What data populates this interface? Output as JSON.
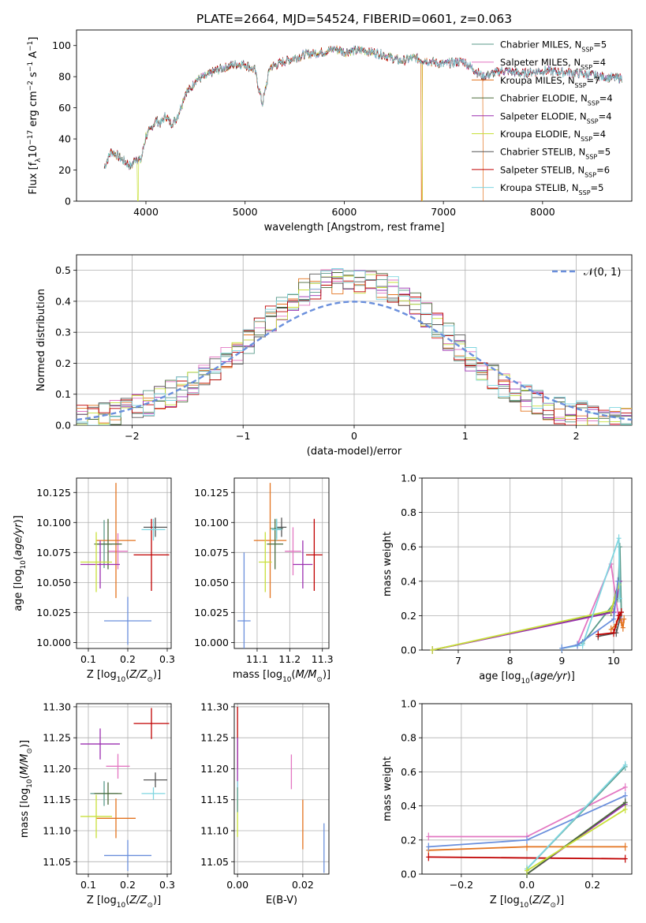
{
  "figure_title": "PLATE=2664, MJD=54524, FIBERID=0601, z=0.063",
  "colors": {
    "Chabrier MILES": "#5a9a8a",
    "Salpeter MILES": "#e377c2",
    "Kroupa MILES": "#e3731e",
    "Chabrier ELODIE": "#4a6a3a",
    "Salpeter ELODIE": "#9b2eb0",
    "Kroupa ELODIE": "#c8e03a",
    "Chabrier STELIB": "#555555",
    "Salpeter STELIB": "#c00000",
    "Kroupa STELIB": "#7fd6e0",
    "normal": "#6a8fdc"
  },
  "chart_data": [
    {
      "id": "spectrum",
      "type": "line",
      "title": "PLATE=2664, MJD=54524, FIBERID=0601, z=0.063",
      "xlabel": "wavelength [Angstrom, rest frame]",
      "ylabel": "Flux [f_λ10^-17 erg cm^-2 s^-1 A^-1]",
      "xlim": [
        3300,
        8900
      ],
      "ylim": [
        0,
        110
      ],
      "xticks": [
        4000,
        5000,
        6000,
        7000,
        8000
      ],
      "yticks": [
        0,
        20,
        40,
        60,
        80,
        100
      ],
      "legend": "top-right",
      "x": [
        3580,
        3650,
        3700,
        3750,
        3800,
        3850,
        3900,
        3950,
        4000,
        4050,
        4100,
        4150,
        4200,
        4250,
        4300,
        4350,
        4400,
        4450,
        4500,
        4600,
        4700,
        4800,
        4900,
        5000,
        5100,
        5175,
        5250,
        5400,
        5600,
        5800,
        5900,
        6000,
        6200,
        6400,
        6563,
        6700,
        6850,
        7000,
        7200,
        7400,
        7600,
        7800,
        8000,
        8200,
        8400,
        8600,
        8800
      ],
      "y": [
        22,
        32,
        30,
        27,
        25,
        22,
        28,
        26,
        42,
        46,
        52,
        50,
        55,
        50,
        52,
        60,
        70,
        72,
        78,
        80,
        84,
        86,
        88,
        88,
        84,
        62,
        86,
        90,
        94,
        96,
        98,
        96,
        97,
        94,
        90,
        92,
        90,
        88,
        90,
        80,
        84,
        82,
        84,
        83,
        82,
        80,
        79
      ],
      "series": [
        {
          "name": "Chabrier MILES, N_SSP=5",
          "drop_at": null
        },
        {
          "name": "Salpeter MILES, N_SSP=4",
          "drop_at": null
        },
        {
          "name": "Kroupa MILES, N_SSP=7",
          "drop_at": [
            6780,
            7400
          ]
        },
        {
          "name": "Chabrier ELODIE, N_SSP=4",
          "drop_at": null
        },
        {
          "name": "Salpeter ELODIE, N_SSP=4",
          "drop_at": null
        },
        {
          "name": "Kroupa ELODIE, N_SSP=4",
          "drop_at": [
            3920,
            6790
          ]
        },
        {
          "name": "Chabrier STELIB, N_SSP=5",
          "drop_at": null
        },
        {
          "name": "Salpeter STELIB, N_SSP=6",
          "drop_at": null
        },
        {
          "name": "Kroupa STELIB, N_SSP=5",
          "drop_at": null
        }
      ]
    },
    {
      "id": "residuals",
      "type": "line",
      "xlabel": "(data-model)/error",
      "ylabel": "Normed distribution",
      "xlim": [
        -2.5,
        2.5
      ],
      "ylim": [
        0,
        0.55
      ],
      "xticks": [
        -2,
        -1,
        0,
        1,
        2
      ],
      "yticks": [
        0.0,
        0.1,
        0.2,
        0.3,
        0.4,
        0.5
      ],
      "grid": true,
      "legend": "top-right",
      "legend_label": "N(0,1)",
      "bin_width": 0.1,
      "histogram_envelope_x": [
        -2.45,
        -2.25,
        -2.05,
        -1.85,
        -1.65,
        -1.45,
        -1.25,
        -1.05,
        -0.85,
        -0.65,
        -0.45,
        -0.25,
        -0.05,
        0.15,
        0.35,
        0.55,
        0.75,
        0.95,
        1.15,
        1.35,
        1.55,
        1.75,
        1.95,
        2.15,
        2.35
      ],
      "histogram_envelope_y": [
        0.02,
        0.03,
        0.05,
        0.07,
        0.1,
        0.13,
        0.18,
        0.24,
        0.31,
        0.38,
        0.43,
        0.46,
        0.47,
        0.46,
        0.44,
        0.39,
        0.32,
        0.25,
        0.19,
        0.13,
        0.09,
        0.06,
        0.04,
        0.03,
        0.02
      ]
    },
    {
      "id": "age_vs_Z",
      "type": "scatter",
      "xlabel": "Z [log10(Z/Z⊙)]",
      "ylabel": "age [log10(age/yr)]",
      "xlim": [
        0.07,
        0.31
      ],
      "ylim": [
        9.995,
        10.137
      ],
      "xticks": [
        0.1,
        0.2,
        0.3
      ],
      "yticks": [
        10.0,
        10.025,
        10.05,
        10.075,
        10.1,
        10.125
      ],
      "grid": true,
      "points": [
        {
          "series": "Chabrier MILES",
          "x": 0.14,
          "y": 10.082,
          "xerr": 0.02,
          "yerr": 0.02
        },
        {
          "series": "Salpeter MILES",
          "x": 0.175,
          "y": 10.076,
          "xerr": 0.025,
          "yerr": 0.015
        },
        {
          "series": "Kroupa MILES",
          "x": 0.17,
          "y": 10.085,
          "xerr": 0.05,
          "yerr": 0.048
        },
        {
          "series": "Chabrier ELODIE",
          "x": 0.15,
          "y": 10.082,
          "xerr": 0.035,
          "yerr": 0.021
        },
        {
          "series": "Salpeter ELODIE",
          "x": 0.13,
          "y": 10.065,
          "xerr": 0.05,
          "yerr": 0.02
        },
        {
          "series": "Kroupa ELODIE",
          "x": 0.12,
          "y": 10.067,
          "xerr": 0.04,
          "yerr": 0.025
        },
        {
          "series": "Chabrier STELIB",
          "x": 0.27,
          "y": 10.096,
          "xerr": 0.03,
          "yerr": 0.008
        },
        {
          "series": "Salpeter STELIB",
          "x": 0.26,
          "y": 10.073,
          "xerr": 0.045,
          "yerr": 0.03
        },
        {
          "series": "Kroupa STELIB",
          "x": 0.265,
          "y": 10.094,
          "xerr": 0.03,
          "yerr": 0.009
        },
        {
          "series": "normal",
          "x": 0.2,
          "y": 10.018,
          "xerr": 0.06,
          "yerr": 0.02
        }
      ]
    },
    {
      "id": "age_vs_mass",
      "type": "scatter",
      "xlabel": "mass [log10(M/M⊙)]",
      "xlim": [
        11.03,
        11.32
      ],
      "ylim": [
        9.995,
        10.137
      ],
      "xticks": [
        11.1,
        11.2,
        11.3
      ],
      "yticks": [
        10.0,
        10.025,
        10.05,
        10.075,
        10.1,
        10.125
      ],
      "grid": true,
      "points": [
        {
          "series": "Chabrier MILES",
          "x": 11.16,
          "y": 10.095,
          "xerr": 0.02,
          "yerr": 0.008
        },
        {
          "series": "Salpeter MILES",
          "x": 11.21,
          "y": 10.076,
          "xerr": 0.025,
          "yerr": 0.02
        },
        {
          "series": "Kroupa MILES",
          "x": 11.14,
          "y": 10.085,
          "xerr": 0.05,
          "yerr": 0.048
        },
        {
          "series": "Chabrier ELODIE",
          "x": 11.155,
          "y": 10.082,
          "xerr": 0.025,
          "yerr": 0.021
        },
        {
          "series": "Salpeter ELODIE",
          "x": 11.24,
          "y": 10.065,
          "xerr": 0.03,
          "yerr": 0.02
        },
        {
          "series": "Kroupa ELODIE",
          "x": 11.125,
          "y": 10.067,
          "xerr": 0.02,
          "yerr": 0.025
        },
        {
          "series": "Chabrier STELIB",
          "x": 11.175,
          "y": 10.096,
          "xerr": 0.015,
          "yerr": 0.008
        },
        {
          "series": "Salpeter STELIB",
          "x": 11.275,
          "y": 10.073,
          "xerr": 0.025,
          "yerr": 0.03
        },
        {
          "series": "Kroupa STELIB",
          "x": 11.16,
          "y": 10.094,
          "xerr": 0.015,
          "yerr": 0.009
        },
        {
          "series": "normal",
          "x": 11.06,
          "y": 10.018,
          "xerr": 0.02,
          "yerr": 0.057
        }
      ]
    },
    {
      "id": "weight_vs_age",
      "type": "line",
      "xlabel": "age [log10(age/yr)]",
      "ylabel": "mass weight",
      "xlim": [
        6.3,
        10.35
      ],
      "ylim": [
        0,
        1.0
      ],
      "xticks": [
        7,
        8,
        9,
        10
      ],
      "yticks": [
        0.0,
        0.2,
        0.4,
        0.6,
        0.8,
        1.0
      ],
      "grid": true,
      "series": [
        {
          "name": "Chabrier MILES",
          "x": [
            9.4,
            10.08,
            10.12,
            10.15
          ],
          "y": [
            0.04,
            0.3,
            0.6,
            0.18
          ]
        },
        {
          "name": "Salpeter MILES",
          "x": [
            9.3,
            9.95,
            10.08,
            10.15
          ],
          "y": [
            0.03,
            0.5,
            0.22,
            0.17
          ]
        },
        {
          "name": "Kroupa MILES",
          "x": [
            9.95,
            10.05,
            10.1,
            10.15,
            10.18,
            10.2
          ],
          "y": [
            0.12,
            0.15,
            0.2,
            0.16,
            0.13,
            0.18
          ]
        },
        {
          "name": "Chabrier ELODIE",
          "x": [
            6.5,
            9.95,
            10.1
          ],
          "y": [
            0.0,
            0.22,
            0.4
          ]
        },
        {
          "name": "Salpeter ELODIE",
          "x": [
            6.5,
            10.0,
            10.12
          ],
          "y": [
            0.0,
            0.22,
            0.4
          ]
        },
        {
          "name": "Kroupa ELODIE",
          "x": [
            6.5,
            9.95,
            10.1
          ],
          "y": [
            0.0,
            0.23,
            0.38
          ]
        },
        {
          "name": "Chabrier STELIB",
          "x": [
            9.7,
            10.05,
            10.15
          ],
          "y": [
            0.08,
            0.1,
            0.22
          ]
        },
        {
          "name": "Salpeter STELIB",
          "x": [
            9.7,
            10.0,
            10.1,
            10.15
          ],
          "y": [
            0.09,
            0.1,
            0.2,
            0.22
          ]
        },
        {
          "name": "Kroupa STELIB",
          "x": [
            9.0,
            9.4,
            10.1,
            10.12
          ],
          "y": [
            0.01,
            0.03,
            0.65,
            0.3
          ]
        },
        {
          "name": "normal",
          "x": [
            9.0,
            9.3,
            10.0,
            10.08
          ],
          "y": [
            0.01,
            0.03,
            0.18,
            0.4
          ]
        }
      ]
    },
    {
      "id": "mass_vs_Z",
      "type": "scatter",
      "xlabel": "Z [log10(Z/Z⊙)]",
      "ylabel": "mass [log10(M/M⊙)]",
      "xlim": [
        0.07,
        0.31
      ],
      "ylim": [
        11.03,
        11.305
      ],
      "xticks": [
        0.1,
        0.2,
        0.3
      ],
      "yticks": [
        11.05,
        11.1,
        11.15,
        11.2,
        11.25,
        11.3
      ],
      "grid": true,
      "points": [
        {
          "series": "Chabrier MILES",
          "x": 0.14,
          "y": 11.16,
          "xerr": 0.035,
          "yerr": 0.02
        },
        {
          "series": "Salpeter MILES",
          "x": 0.175,
          "y": 11.204,
          "xerr": 0.03,
          "yerr": 0.02
        },
        {
          "series": "Kroupa MILES",
          "x": 0.17,
          "y": 11.12,
          "xerr": 0.05,
          "yerr": 0.032
        },
        {
          "series": "Chabrier ELODIE",
          "x": 0.15,
          "y": 11.16,
          "xerr": 0.035,
          "yerr": 0.018
        },
        {
          "series": "Salpeter ELODIE",
          "x": 0.13,
          "y": 11.24,
          "xerr": 0.05,
          "yerr": 0.025
        },
        {
          "series": "Kroupa ELODIE",
          "x": 0.12,
          "y": 11.123,
          "xerr": 0.04,
          "yerr": 0.035
        },
        {
          "series": "Chabrier STELIB",
          "x": 0.27,
          "y": 11.182,
          "xerr": 0.03,
          "yerr": 0.012
        },
        {
          "series": "Salpeter STELIB",
          "x": 0.26,
          "y": 11.273,
          "xerr": 0.045,
          "yerr": 0.025
        },
        {
          "series": "Kroupa STELIB",
          "x": 0.265,
          "y": 11.16,
          "xerr": 0.03,
          "yerr": 0.01
        },
        {
          "series": "normal",
          "x": 0.2,
          "y": 11.06,
          "xerr": 0.06,
          "yerr": 0.025
        }
      ]
    },
    {
      "id": "mass_vs_EBV",
      "type": "scatter",
      "xlabel": "E(B-V)",
      "xlim": [
        -0.001,
        0.028
      ],
      "ylim": [
        11.03,
        11.305
      ],
      "xticks": [
        0.0,
        0.02
      ],
      "yticks": [
        11.05,
        11.1,
        11.15,
        11.2,
        11.25,
        11.3
      ],
      "grid": true,
      "points": [
        {
          "series": "Salpeter STELIB",
          "x": 0.0,
          "y": 11.25,
          "xerr": 0.0,
          "yerr": 0.05
        },
        {
          "series": "Salpeter ELODIE",
          "x": 0.0,
          "y": 11.21,
          "xerr": 0.0,
          "yerr": 0.04
        },
        {
          "series": "Kroupa STELIB",
          "x": 0.0,
          "y": 11.16,
          "xerr": 0.0,
          "yerr": 0.02
        },
        {
          "series": "Kroupa ELODIE",
          "x": 0.0,
          "y": 11.12,
          "xerr": 0.0,
          "yerr": 0.03
        },
        {
          "series": "Chabrier MILES",
          "x": 0.0,
          "y": 11.15,
          "xerr": 0.0,
          "yerr": 0.02
        },
        {
          "series": "Salpeter MILES",
          "x": 0.0165,
          "y": 11.195,
          "xerr": 0.0,
          "yerr": 0.028
        },
        {
          "series": "Kroupa MILES",
          "x": 0.02,
          "y": 11.11,
          "xerr": 0.0,
          "yerr": 0.04
        },
        {
          "series": "normal",
          "x": 0.0265,
          "y": 11.072,
          "xerr": 0.0,
          "yerr": 0.04
        }
      ]
    },
    {
      "id": "weight_vs_Z",
      "type": "line",
      "xlabel": "Z [log10(Z/Z⊙)]",
      "ylabel": "mass weight",
      "xlim": [
        -0.32,
        0.32
      ],
      "ylim": [
        0,
        1.0
      ],
      "xticks": [
        -0.2,
        0.0,
        0.2
      ],
      "yticks": [
        0.0,
        0.2,
        0.4,
        0.6,
        0.8,
        1.0
      ],
      "grid": true,
      "series": [
        {
          "name": "Salpeter MILES",
          "x": [
            -0.3,
            0.0,
            0.3
          ],
          "y": [
            0.22,
            0.22,
            0.51
          ]
        },
        {
          "name": "Kroupa MILES",
          "x": [
            -0.3,
            0.0,
            0.3
          ],
          "y": [
            0.14,
            0.16,
            0.16
          ]
        },
        {
          "name": "Salpeter STELIB",
          "x": [
            -0.3,
            0.3
          ],
          "y": [
            0.1,
            0.09
          ]
        },
        {
          "name": "normal",
          "x": [
            -0.3,
            0.0,
            0.3
          ],
          "y": [
            0.16,
            0.2,
            0.46
          ]
        },
        {
          "name": "Chabrier MILES",
          "x": [
            0.0,
            0.3
          ],
          "y": [
            0.03,
            0.63
          ]
        },
        {
          "name": "Kroupa STELIB",
          "x": [
            0.0,
            0.3
          ],
          "y": [
            0.03,
            0.64
          ]
        },
        {
          "name": "Salpeter ELODIE",
          "x": [
            0.0,
            0.3
          ],
          "y": [
            0.0,
            0.41
          ]
        },
        {
          "name": "Chabrier ELODIE",
          "x": [
            0.0,
            0.3
          ],
          "y": [
            0.0,
            0.42
          ]
        },
        {
          "name": "Kroupa ELODIE",
          "x": [
            0.0,
            0.3
          ],
          "y": [
            0.02,
            0.38
          ]
        }
      ]
    }
  ]
}
